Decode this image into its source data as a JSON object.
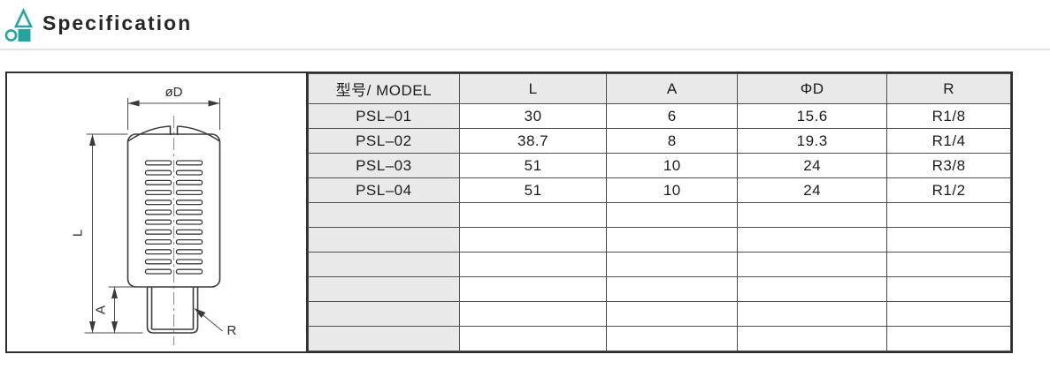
{
  "header": {
    "title": "Specification"
  },
  "theme": {
    "accent": "#23a69e",
    "table_header_bg": "#e9e9e9",
    "grid_line": "#4f4f4f",
    "outer_border": "#2e2e2e",
    "title_rule": "#e2e2e2",
    "text": "#1c1c1c"
  },
  "drawing": {
    "labels": {
      "diameter": "øD",
      "length": "L",
      "stem": "A",
      "thread": "R"
    }
  },
  "table": {
    "columns": [
      "型号/ MODEL",
      "L",
      "A",
      "ΦD",
      "R"
    ],
    "col_widths_pct": [
      21.5,
      21.0,
      18.6,
      21.3,
      17.6
    ],
    "rows": [
      [
        "PSL–01",
        "30",
        "6",
        "15.6",
        "R1/8"
      ],
      [
        "PSL–02",
        "38.7",
        "8",
        "19.3",
        "R1/4"
      ],
      [
        "PSL–03",
        "51",
        "10",
        "24",
        "R3/8"
      ],
      [
        "PSL–04",
        "51",
        "10",
        "24",
        "R1/2"
      ]
    ],
    "empty_rows": 6
  }
}
